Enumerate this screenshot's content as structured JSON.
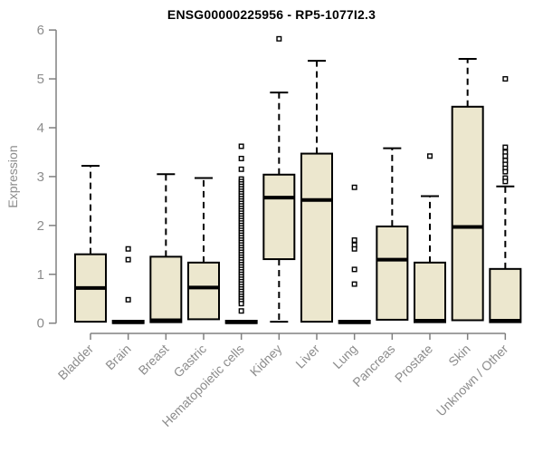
{
  "title": "ENSG00000225956 - RP5-1077I2.3",
  "colors": {
    "box_fill": "#ECE7CE",
    "box_stroke": "#000000",
    "median": "#000000",
    "whisker": "#000000",
    "outlier": "#000000",
    "axis": "#808080",
    "tick_label": "#8c8c8c",
    "title_color": "#000000",
    "background": "#ffffff"
  },
  "chart_data": {
    "type": "boxplot",
    "title": "ENSG00000225956 - RP5-1077I2.3",
    "xlabel": "",
    "ylabel": "Expression",
    "ylim": [
      0,
      6
    ],
    "yticks": [
      0,
      1,
      2,
      3,
      4,
      5,
      6
    ],
    "grid": false,
    "legend": "none",
    "categories": [
      "Bladder",
      "Brain",
      "Breast",
      "Gastric",
      "Hematopoietic cells",
      "Kidney",
      "Liver",
      "Lung",
      "Pancreas",
      "Prostate",
      "Skin",
      "Unknown / Other"
    ],
    "series": [
      {
        "category": "Bladder",
        "whisker_low": 0,
        "q1": 0.03,
        "median": 0.72,
        "q3": 1.41,
        "whisker_high": 3.22,
        "outliers": []
      },
      {
        "category": "Brain",
        "whisker_low": 0,
        "q1": 0,
        "median": 0.02,
        "q3": 0.05,
        "whisker_high": 0.05,
        "outliers": [
          1.52,
          1.3,
          0.48
        ]
      },
      {
        "category": "Breast",
        "whisker_low": 0,
        "q1": 0.02,
        "median": 0.06,
        "q3": 1.36,
        "whisker_high": 3.05,
        "outliers": []
      },
      {
        "category": "Gastric",
        "whisker_low": 0,
        "q1": 0.08,
        "median": 0.73,
        "q3": 1.24,
        "whisker_high": 2.97,
        "outliers": []
      },
      {
        "category": "Hematopoietic cells",
        "whisker_low": 0,
        "q1": 0,
        "median": 0.02,
        "q3": 0.05,
        "whisker_high": 0.05,
        "outliers": [
          3.62,
          3.37,
          3.15,
          2.95,
          2.9,
          2.85,
          2.8,
          2.75,
          2.7,
          2.65,
          2.6,
          2.55,
          2.5,
          2.45,
          2.4,
          2.35,
          2.3,
          2.25,
          2.2,
          2.15,
          2.1,
          2.05,
          2.0,
          1.95,
          1.9,
          1.85,
          1.8,
          1.75,
          1.7,
          1.65,
          1.6,
          1.55,
          1.5,
          1.45,
          1.4,
          1.35,
          1.3,
          1.25,
          1.2,
          1.15,
          1.1,
          1.05,
          1.0,
          0.95,
          0.9,
          0.85,
          0.8,
          0.75,
          0.7,
          0.65,
          0.6,
          0.55,
          0.5,
          0.45,
          0.4,
          0.25
        ]
      },
      {
        "category": "Kidney",
        "whisker_low": 0.03,
        "q1": 1.31,
        "median": 2.57,
        "q3": 3.04,
        "whisker_high": 4.72,
        "outliers": [
          5.82
        ]
      },
      {
        "category": "Liver",
        "whisker_low": 0,
        "q1": 0.03,
        "median": 2.52,
        "q3": 3.47,
        "whisker_high": 5.37,
        "outliers": []
      },
      {
        "category": "Lung",
        "whisker_low": 0,
        "q1": 0,
        "median": 0.02,
        "q3": 0.05,
        "whisker_high": 0.05,
        "outliers": [
          2.78,
          1.7,
          1.6,
          1.52,
          1.1,
          0.8
        ]
      },
      {
        "category": "Pancreas",
        "whisker_low": 0,
        "q1": 0.07,
        "median": 1.3,
        "q3": 1.98,
        "whisker_high": 3.58,
        "outliers": []
      },
      {
        "category": "Prostate",
        "whisker_low": 0,
        "q1": 0.02,
        "median": 0.05,
        "q3": 1.24,
        "whisker_high": 2.6,
        "outliers": [
          3.42
        ]
      },
      {
        "category": "Skin",
        "whisker_low": 0,
        "q1": 0.06,
        "median": 1.97,
        "q3": 4.43,
        "whisker_high": 5.41,
        "outliers": []
      },
      {
        "category": "Unknown / Other",
        "whisker_low": 0,
        "q1": 0.02,
        "median": 0.05,
        "q3": 1.11,
        "whisker_high": 2.8,
        "outliers": [
          5.0,
          3.6,
          3.5,
          3.42,
          3.33,
          3.25,
          3.17,
          3.1,
          2.97,
          2.9
        ]
      }
    ]
  }
}
